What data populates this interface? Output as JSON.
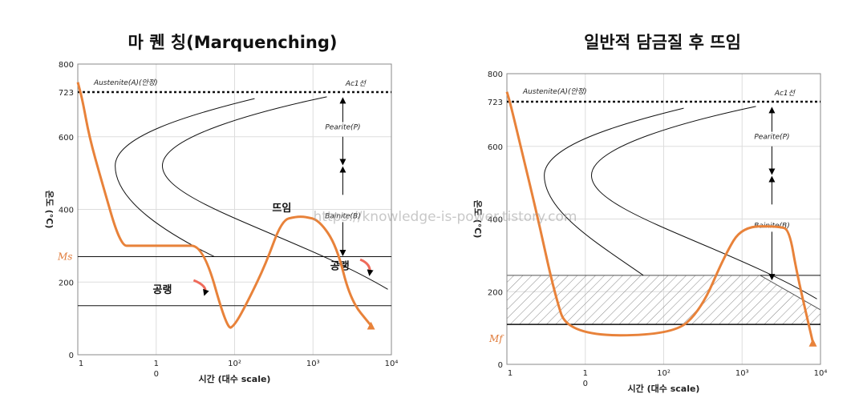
{
  "watermark": "https://knowledge-is-power.tistory.com",
  "colors": {
    "cooling_curve": "#e8823a",
    "arrow_red": "#ef6a5a",
    "line": "#111111",
    "grid": "#dddddd",
    "hatch": "#888888"
  },
  "chart_data": [
    {
      "type": "line",
      "title": "마 퀜 칭(Marquenching)",
      "xlabel": "시간 (대수 scale)",
      "ylabel": "온도 (°C)",
      "ylim": [
        0,
        800
      ],
      "y_ticks": [
        "0",
        "200",
        "400",
        "600",
        "723",
        "800"
      ],
      "x_ticks": [
        "1",
        "1\n0",
        "10²",
        "10³",
        "10⁴"
      ],
      "grid": true,
      "labels": {
        "austenite": "Austenite(A)(안정)",
        "ac1": "Ac1선",
        "pearlite": "Pearite(P)",
        "bainite": "Bainite(B)",
        "ms": "Ms",
        "tempering": "뜨임",
        "aircool1": "공랭",
        "aircool2": "공랭"
      },
      "series": [
        {
          "x": [
            1.0,
            1.15,
            1.4,
            2.0,
            3.5,
            5.0,
            8.0,
            10,
            20,
            40,
            80,
            100,
            150,
            250,
            400,
            600,
            800,
            1200,
            2000,
            3000,
            5500
          ],
          "y": [
            750,
            700,
            600,
            480,
            300,
            300,
            300,
            300,
            300,
            300,
            70,
            80,
            150,
            250,
            370,
            380,
            380,
            370,
            300,
            150,
            80
          ]
        }
      ],
      "reference_lines": {
        "ac1": 723,
        "ms": 270,
        "mf": 135
      }
    },
    {
      "type": "line",
      "title": "일반적 담금질 후 뜨임",
      "xlabel": "시간 (대수 scale)",
      "ylabel": "온도 (°C)",
      "ylim": [
        0,
        800
      ],
      "y_ticks": [
        "0",
        "200",
        "400",
        "600",
        "723",
        "800"
      ],
      "x_ticks": [
        "1",
        "1\n0",
        "10²",
        "10³",
        "10⁴"
      ],
      "grid": true,
      "labels": {
        "austenite": "Austenite(A)(안정)",
        "ac1": "Ac1선",
        "pearlite": "Pearite(P)",
        "bainite": "Bainite(B)",
        "mf": "Mf"
      },
      "series": [
        {
          "x": [
            1.0,
            1.1,
            1.5,
            2.5,
            4.0,
            6.0,
            130,
            300,
            600,
            1000,
            3000,
            4000,
            5000,
            8000
          ],
          "y": [
            750,
            720,
            600,
            400,
            200,
            80,
            80,
            150,
            300,
            380,
            380,
            370,
            250,
            60
          ]
        }
      ],
      "reference_lines": {
        "ac1": 723,
        "ms": 245,
        "mf": 110
      }
    }
  ]
}
